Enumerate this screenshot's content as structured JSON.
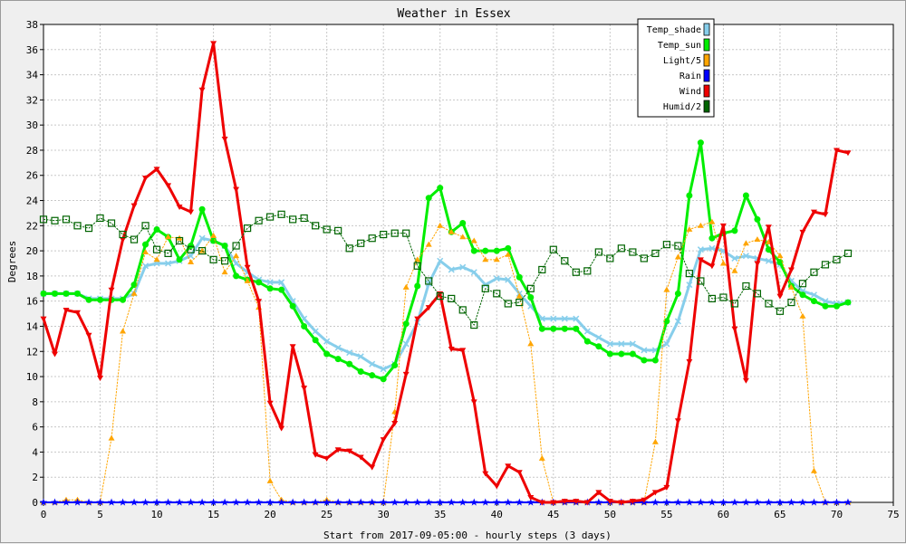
{
  "chart_data": {
    "type": "line",
    "title": "Weather in Essex",
    "xlabel": "Start from 2017-09-05:00 - hourly steps (3 days)",
    "ylabel": "Degrees",
    "xlim": [
      0,
      75
    ],
    "ylim": [
      0,
      38
    ],
    "x_ticks": [
      0,
      5,
      10,
      15,
      20,
      25,
      30,
      35,
      40,
      45,
      50,
      55,
      60,
      65,
      70,
      75
    ],
    "y_ticks": [
      0,
      2,
      4,
      6,
      8,
      10,
      12,
      14,
      16,
      18,
      20,
      22,
      24,
      26,
      28,
      30,
      32,
      34,
      36,
      38
    ],
    "grid": true,
    "legend_position": "top-right",
    "series": [
      {
        "name": "Temp_shade",
        "color": "#87ceeb",
        "marker": "x",
        "line_style": "solid",
        "line_width": 3,
        "values": [
          16.6,
          16.6,
          16.6,
          16.6,
          16.2,
          16.2,
          16.2,
          16.2,
          16.6,
          18.8,
          19.0,
          19.0,
          19.2,
          19.6,
          21.0,
          20.8,
          20.4,
          19.0,
          18.3,
          17.7,
          17.5,
          17.5,
          16.0,
          14.6,
          13.6,
          12.8,
          12.3,
          11.9,
          11.6,
          11.0,
          10.6,
          11.0,
          12.6,
          14.3,
          17.4,
          19.2,
          18.5,
          18.7,
          18.3,
          17.3,
          17.8,
          17.7,
          16.6,
          15.6,
          14.6,
          14.6,
          14.6,
          14.6,
          13.6,
          13.1,
          12.6,
          12.6,
          12.6,
          12.1,
          12.1,
          12.6,
          14.4,
          17.3,
          20.1,
          20.2,
          20.0,
          19.4,
          19.6,
          19.4,
          19.2,
          18.9,
          17.6,
          16.8,
          16.5,
          16.0,
          15.8,
          15.9
        ]
      },
      {
        "name": "Temp_sun",
        "color": "#00ee00",
        "marker": "circle",
        "line_style": "solid",
        "line_width": 3,
        "values": [
          16.6,
          16.6,
          16.6,
          16.6,
          16.1,
          16.1,
          16.1,
          16.1,
          17.3,
          20.5,
          21.7,
          21.1,
          19.3,
          20.4,
          23.3,
          20.8,
          20.4,
          18.0,
          17.7,
          17.5,
          17.0,
          16.9,
          15.6,
          14.0,
          12.9,
          11.8,
          11.4,
          11.0,
          10.4,
          10.1,
          9.8,
          10.9,
          14.2,
          17.2,
          24.2,
          25.0,
          21.5,
          22.2,
          20.0,
          20.0,
          20.0,
          20.2,
          17.9,
          16.3,
          13.8,
          13.8,
          13.8,
          13.8,
          12.8,
          12.4,
          11.8,
          11.8,
          11.8,
          11.3,
          11.3,
          14.4,
          16.6,
          24.4,
          28.6,
          21.0,
          21.4,
          21.6,
          24.4,
          22.5,
          20.1,
          19.1,
          17.2,
          16.5,
          16.0,
          15.6,
          15.6,
          15.9
        ]
      },
      {
        "name": "Light/5",
        "color": "#ffa500",
        "marker": "triangle-up",
        "line_style": "dotted",
        "line_width": 1,
        "values": [
          0,
          0,
          0.2,
          0.2,
          0,
          0,
          5.1,
          13.6,
          16.6,
          19.9,
          19.3,
          21.1,
          21.0,
          19.1,
          20.0,
          21.2,
          18.3,
          19.6,
          17.6,
          15.5,
          1.7,
          0.2,
          0,
          0,
          0,
          0.2,
          0,
          0,
          0,
          0,
          0,
          7.2,
          17.1,
          19.3,
          20.5,
          22.0,
          21.5,
          21.1,
          20.8,
          19.3,
          19.3,
          19.7,
          16.4,
          12.6,
          3.5,
          0,
          0,
          0,
          0,
          0,
          0,
          0,
          0,
          0,
          4.8,
          16.9,
          19.5,
          21.7,
          22.0,
          22.3,
          19.0,
          18.4,
          20.6,
          20.9,
          20.7,
          19.6,
          17.1,
          14.8,
          2.5,
          0,
          0,
          0
        ]
      },
      {
        "name": "Rain",
        "color": "#0000ff",
        "marker": "star",
        "line_style": "solid",
        "line_width": 2,
        "values": [
          0,
          0,
          0,
          0,
          0,
          0,
          0,
          0,
          0,
          0,
          0,
          0,
          0,
          0,
          0,
          0,
          0,
          0,
          0,
          0,
          0,
          0,
          0,
          0,
          0,
          0,
          0,
          0,
          0,
          0,
          0,
          0,
          0,
          0,
          0,
          0,
          0,
          0,
          0,
          0,
          0,
          0,
          0,
          0,
          0,
          0,
          0,
          0,
          0,
          0,
          0,
          0,
          0,
          0,
          0,
          0,
          0,
          0,
          0,
          0,
          0,
          0,
          0,
          0,
          0,
          0,
          0,
          0,
          0,
          0,
          0,
          0
        ]
      },
      {
        "name": "Wind",
        "color": "#ee0000",
        "marker": "triangle-down",
        "line_style": "solid",
        "line_width": 3,
        "values": [
          14.6,
          11.8,
          15.3,
          15.1,
          13.3,
          9.9,
          16.9,
          20.9,
          23.6,
          25.8,
          26.5,
          25.2,
          23.5,
          23.1,
          32.8,
          36.5,
          28.9,
          24.9,
          18.7,
          16.0,
          7.9,
          5.9,
          12.4,
          9.1,
          3.8,
          3.5,
          4.2,
          4.1,
          3.6,
          2.8,
          5.0,
          6.3,
          10.2,
          14.6,
          15.5,
          16.6,
          12.2,
          12.1,
          8.0,
          2.3,
          1.3,
          2.9,
          2.4,
          0.4,
          0,
          0,
          0.1,
          0.1,
          0,
          0.8,
          0.1,
          0,
          0.1,
          0.2,
          0.8,
          1.2,
          6.5,
          11.2,
          19.3,
          18.8,
          22.0,
          13.8,
          9.7,
          19.0,
          21.9,
          16.4,
          18.5,
          21.5,
          23.1,
          22.9,
          28.0,
          27.8
        ]
      },
      {
        "name": "Humid/2",
        "color": "#006400",
        "marker": "square-box",
        "line_style": "dotted",
        "line_width": 1,
        "values": [
          22.5,
          22.4,
          22.5,
          22.0,
          21.8,
          22.6,
          22.2,
          21.3,
          20.9,
          22.0,
          20.1,
          19.8,
          20.8,
          20.1,
          20.0,
          19.3,
          19.2,
          20.4,
          21.8,
          22.4,
          22.7,
          22.9,
          22.5,
          22.6,
          22.0,
          21.7,
          21.6,
          20.2,
          20.6,
          21.0,
          21.3,
          21.4,
          21.4,
          18.8,
          17.6,
          16.4,
          16.2,
          15.3,
          14.1,
          17.0,
          16.6,
          15.8,
          15.9,
          17.0,
          18.5,
          20.1,
          19.2,
          18.3,
          18.4,
          19.9,
          19.4,
          20.2,
          19.9,
          19.4,
          19.8,
          20.5,
          20.4,
          18.2,
          17.6,
          16.2,
          16.3,
          15.8,
          17.2,
          16.6,
          15.8,
          15.2,
          15.9,
          17.4,
          18.3,
          18.9,
          19.3,
          19.8
        ]
      }
    ]
  }
}
